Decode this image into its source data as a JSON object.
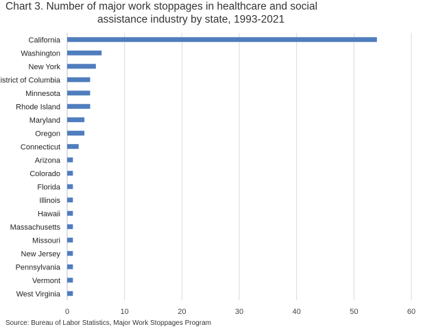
{
  "chart_data": {
    "type": "bar",
    "orientation": "horizontal",
    "title_line1": "Chart 3. Number of major work stoppages in healthcare and social",
    "title_line2": "assistance industry by state, 1993-2021",
    "categories": [
      "California",
      "Washington",
      "New York",
      "District of Columbia",
      "Minnesota",
      "Rhode Island",
      "Maryland",
      "Oregon",
      "Connecticut",
      "Arizona",
      "Colorado",
      "Florida",
      "Illinois",
      "Hawaii",
      "Massachusetts",
      "Missouri",
      "New Jersey",
      "Pennsylvania",
      "Vermont",
      "West Virginia"
    ],
    "values": [
      54,
      6,
      5,
      4,
      4,
      4,
      3,
      3,
      2,
      1,
      1,
      1,
      1,
      1,
      1,
      1,
      1,
      1,
      1,
      1
    ],
    "xlim": [
      0,
      60
    ],
    "xticks": [
      0,
      10,
      20,
      30,
      40,
      50,
      60
    ],
    "grid": true,
    "bar_color": "#4f7dbd",
    "grid_color": "#d9d9d9",
    "source": "Source: Bureau of Labor Statistics, Major Work Stoppages Program"
  }
}
